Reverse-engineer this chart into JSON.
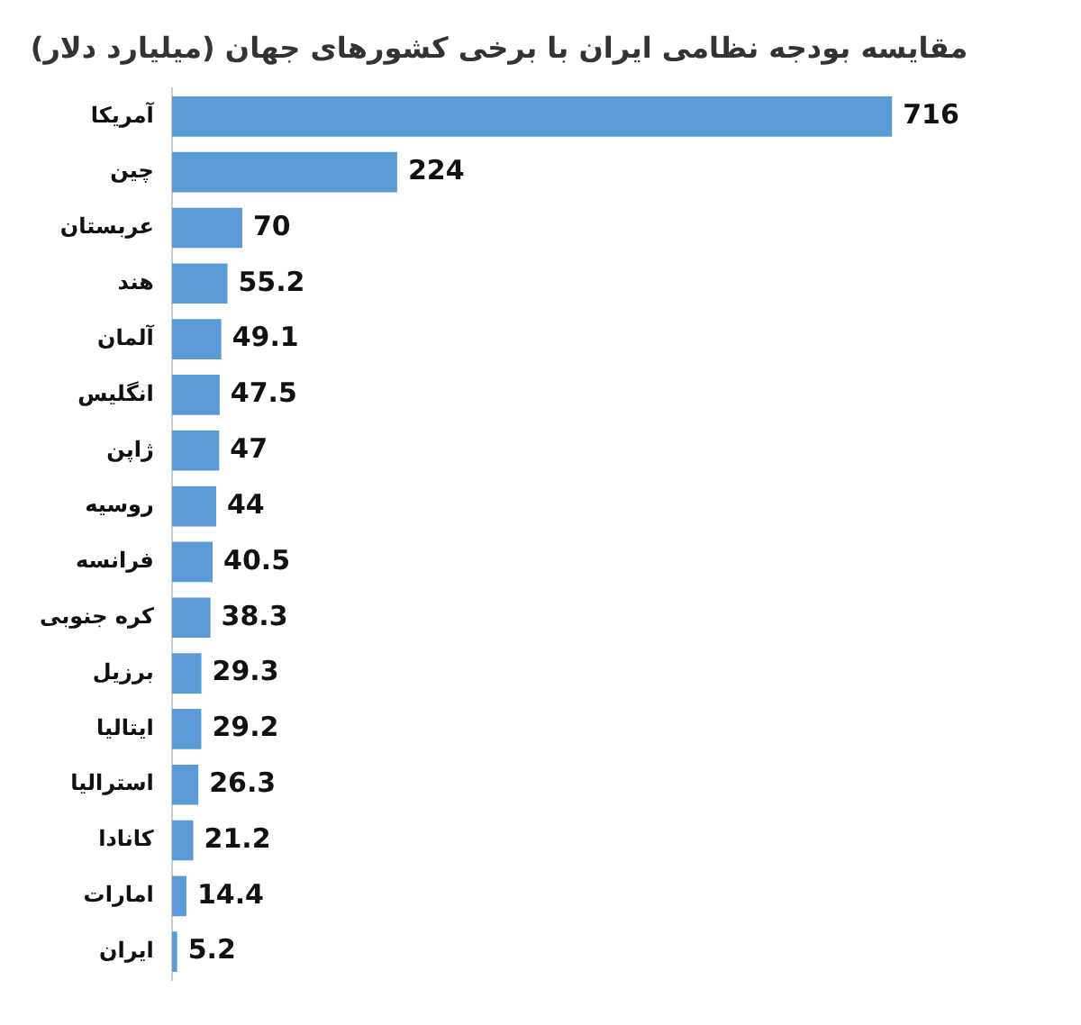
{
  "chart_data": {
    "type": "bar",
    "orientation": "horizontal",
    "title": "مقایسه بودجه نظامی ایران با برخی کشورهای جهان (میلیارد دلار)",
    "categories": [
      "آمریکا",
      "چین",
      "عربستان",
      "هند",
      "آلمان",
      "انگلیس",
      "ژاپن",
      "روسیه",
      "فرانسه",
      "کره جنوبی",
      "برزیل",
      "ایتالیا",
      "استرالیا",
      "کانادا",
      "امارات",
      "ایران"
    ],
    "values": [
      716,
      224,
      70,
      55.2,
      49.1,
      47.5,
      47,
      44,
      40.5,
      38.3,
      29.3,
      29.2,
      26.3,
      21.2,
      14.4,
      5.2
    ],
    "color": "#5b9bd5",
    "data_labels": true,
    "grid": false,
    "legend": false
  }
}
